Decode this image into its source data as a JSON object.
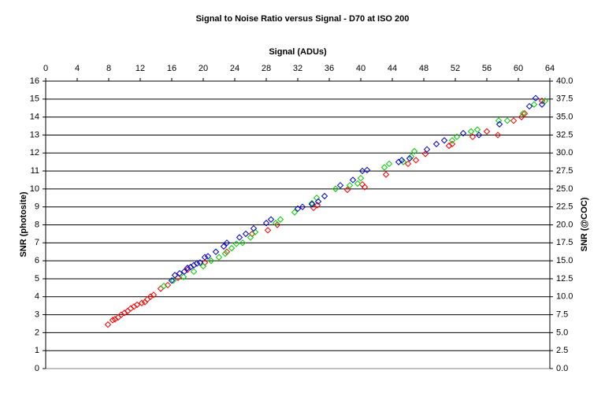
{
  "chart_data": {
    "type": "scatter",
    "title": "Signal to Noise Ratio versus Signal - D70 at ISO 200",
    "x_label": "Signal (ADUs)",
    "y_label": "SNR (photosite)",
    "y2_label": "SNR (@COC)",
    "xlim": [
      0,
      64
    ],
    "xticks": [
      0,
      4,
      8,
      12,
      16,
      20,
      24,
      28,
      32,
      36,
      40,
      44,
      48,
      52,
      56,
      60,
      64
    ],
    "ylim": [
      0,
      16
    ],
    "yticks": [
      0,
      1,
      2,
      3,
      4,
      5,
      6,
      7,
      8,
      9,
      10,
      11,
      12,
      13,
      14,
      15,
      16
    ],
    "y2lim": [
      0,
      40
    ],
    "y2ticks": [
      {
        "value": 0,
        "label": "0.0"
      },
      {
        "value": 2.5,
        "label": "2.5"
      },
      {
        "value": 5,
        "label": "5.0"
      },
      {
        "value": 7.5,
        "label": "7.5"
      },
      {
        "value": 10,
        "label": "10.0"
      },
      {
        "value": 12.5,
        "label": "12.5"
      },
      {
        "value": 15,
        "label": "15.0"
      },
      {
        "value": 17.5,
        "label": "17.5"
      },
      {
        "value": 20,
        "label": "20.0"
      },
      {
        "value": 22.5,
        "label": "22.5"
      },
      {
        "value": 25,
        "label": "25.0"
      },
      {
        "value": 27.5,
        "label": "27.5"
      },
      {
        "value": 30,
        "label": "30.0"
      },
      {
        "value": 32.5,
        "label": "32.5"
      },
      {
        "value": 35,
        "label": "35.0"
      },
      {
        "value": 37.5,
        "label": "37.5"
      },
      {
        "value": 40,
        "label": "40.0"
      }
    ],
    "grid": true,
    "series": [
      {
        "color": "#ff0000",
        "x": [
          7.9,
          8.5,
          8.8,
          9.2,
          9.6,
          10.0,
          10.4,
          10.8,
          11.2,
          11.6,
          12.2,
          12.6,
          12.9,
          13.3,
          13.7,
          14.6,
          15.5,
          16.8,
          18.0,
          20.2,
          23.0,
          26.2,
          28.2,
          29.4,
          34.0,
          34.5,
          38.3,
          40.5,
          40.2,
          43.2,
          46.0,
          47.0,
          48.2,
          51.2,
          51.6,
          54.2,
          56.0,
          57.4,
          59.4,
          60.4,
          60.8,
          63.0
        ],
        "values": [
          2.45,
          2.7,
          2.75,
          2.85,
          3.0,
          3.1,
          3.2,
          3.35,
          3.45,
          3.55,
          3.65,
          3.7,
          3.85,
          4.0,
          4.1,
          4.45,
          4.65,
          5.05,
          5.5,
          5.9,
          6.5,
          7.5,
          7.7,
          8.0,
          8.95,
          9.1,
          9.95,
          10.1,
          10.25,
          10.8,
          11.4,
          11.6,
          11.95,
          12.4,
          12.5,
          12.9,
          13.2,
          13.0,
          13.8,
          14.0,
          14.2,
          14.9
        ]
      },
      {
        "color": "#00cc00",
        "x": [
          15.0,
          16.2,
          17.5,
          18.8,
          20.0,
          21.0,
          22.0,
          22.8,
          23.6,
          24.2,
          25.0,
          26.0,
          26.6,
          29.2,
          29.8,
          31.6,
          33.8,
          34.4,
          36.8,
          38.6,
          39.6,
          40.0,
          43.0,
          43.6,
          45.4,
          46.4,
          46.8,
          51.6,
          52.2,
          54.0,
          54.8,
          57.5,
          58.6,
          60.6,
          62.0,
          63.4
        ],
        "values": [
          4.6,
          4.9,
          5.1,
          5.4,
          5.7,
          6.0,
          6.2,
          6.4,
          6.7,
          6.95,
          7.0,
          7.3,
          7.6,
          8.1,
          8.3,
          8.7,
          9.2,
          9.5,
          10.0,
          10.2,
          10.3,
          10.6,
          11.2,
          11.4,
          11.5,
          11.8,
          12.1,
          12.7,
          12.9,
          13.2,
          13.3,
          13.8,
          13.8,
          14.2,
          14.7,
          14.9
        ]
      },
      {
        "color": "#0000cc",
        "x": [
          16.0,
          16.4,
          17.0,
          17.6,
          18.0,
          18.4,
          18.8,
          19.2,
          19.6,
          20.2,
          20.6,
          21.6,
          22.6,
          23.0,
          24.6,
          25.4,
          26.4,
          28.0,
          28.6,
          32.0,
          32.6,
          33.8,
          34.6,
          35.4,
          37.4,
          39.0,
          40.2,
          40.8,
          44.8,
          45.2,
          46.2,
          48.4,
          49.6,
          50.6,
          53.0,
          55.0,
          57.6,
          61.4,
          62.2,
          63.0
        ],
        "values": [
          4.9,
          5.2,
          5.3,
          5.4,
          5.6,
          5.65,
          5.75,
          5.85,
          5.9,
          6.2,
          6.25,
          6.5,
          6.8,
          7.0,
          7.3,
          7.5,
          7.8,
          8.1,
          8.3,
          8.9,
          9.0,
          9.15,
          9.3,
          9.6,
          10.2,
          10.5,
          11.0,
          11.05,
          11.5,
          11.6,
          11.7,
          12.2,
          12.5,
          12.7,
          13.1,
          13.0,
          13.6,
          14.6,
          15.05,
          14.7
        ]
      }
    ]
  }
}
